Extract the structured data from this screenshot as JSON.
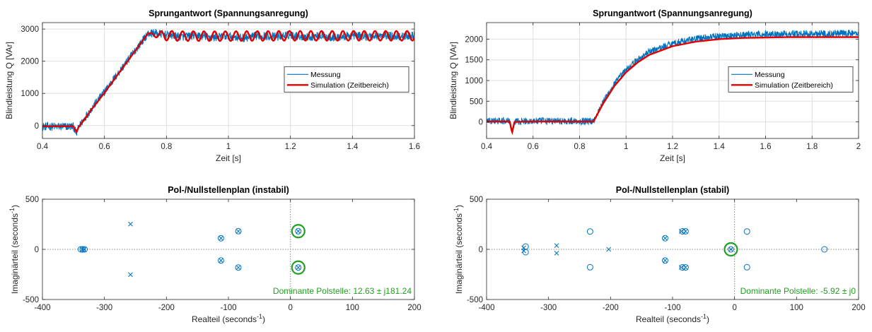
{
  "colors": {
    "measurement": "#0072BD",
    "simulation": "#E00000",
    "highlight": "#20A020",
    "grid": "#DFDFDF",
    "axis": "#262626",
    "zero_line": "#8A8A8A"
  },
  "chart_data": [
    {
      "id": "step_unstable",
      "type": "line",
      "title": "Sprungantwort (Spannungsanregung)",
      "xlabel": "Zeit [s]",
      "ylabel": "Blindleistung Q [VAr]",
      "xlim": [
        0.4,
        1.6
      ],
      "ylim": [
        -400,
        3200
      ],
      "xticks": [
        0.4,
        0.6,
        0.8,
        1.0,
        1.2,
        1.4,
        1.6
      ],
      "xtick_labels": [
        "0.4",
        "0.6",
        "0.8",
        "1",
        "1.2",
        "1.4",
        "1.6"
      ],
      "yticks": [
        0,
        1000,
        2000,
        3000
      ],
      "ytick_labels": [
        "0",
        "1000",
        "2000",
        "3000"
      ],
      "grid": true,
      "legend_position": "right",
      "series": [
        {
          "name": "Messung",
          "color": "measurement",
          "noise": 130,
          "x": [
            0.4,
            0.5,
            0.505,
            0.51,
            0.515,
            0.52,
            0.53,
            0.56,
            0.6,
            0.65,
            0.7,
            0.72,
            0.74,
            0.76,
            0.8,
            0.85,
            0.9,
            0.95,
            1.0,
            1.05,
            1.1,
            1.15,
            1.2,
            1.25,
            1.3,
            1.35,
            1.4,
            1.45,
            1.5,
            1.55,
            1.6
          ],
          "y": [
            -30,
            -30,
            -150,
            -250,
            -100,
            0,
            150,
            550,
            1050,
            1700,
            2350,
            2600,
            2850,
            2880,
            2820,
            2760,
            2800,
            2740,
            2780,
            2720,
            2800,
            2760,
            2820,
            2750,
            2790,
            2730,
            2800,
            2760,
            2800,
            2770,
            2790
          ]
        },
        {
          "name": "Simulation (Zeitbereich)",
          "color": "simulation",
          "oscillation": {
            "amplitude": 150,
            "frequency_hz": 29,
            "start": 0.74
          },
          "x": [
            0.4,
            0.5,
            0.505,
            0.51,
            0.515,
            0.52,
            0.53,
            0.56,
            0.6,
            0.65,
            0.7,
            0.74,
            0.78,
            0.85,
            1.0,
            1.2,
            1.4,
            1.6
          ],
          "y": [
            -20,
            -20,
            -120,
            -210,
            -80,
            0,
            120,
            520,
            1020,
            1680,
            2330,
            2860,
            2800,
            2780,
            2780,
            2790,
            2790,
            2790
          ]
        }
      ]
    },
    {
      "id": "step_stable",
      "type": "line",
      "title": "Sprungantwort (Spannungsanregung)",
      "xlabel": "Zeit [s]",
      "ylabel": "Blindleistung Q [VAr]",
      "xlim": [
        0.4,
        2.0
      ],
      "ylim": [
        -400,
        2400
      ],
      "xticks": [
        0.4,
        0.6,
        0.8,
        1.0,
        1.2,
        1.4,
        1.6,
        1.8,
        2.0
      ],
      "xtick_labels": [
        "0.4",
        "0.6",
        "0.8",
        "1",
        "1.2",
        "1.4",
        "1.6",
        "1.8",
        "2"
      ],
      "yticks": [
        0,
        500,
        1000,
        1500,
        2000
      ],
      "ytick_labels": [
        "0",
        "500",
        "1000",
        "1500",
        "2000"
      ],
      "grid": true,
      "legend_position": "right",
      "series": [
        {
          "name": "Messung",
          "color": "measurement",
          "noise": 85,
          "x": [
            0.4,
            0.5,
            0.505,
            0.51,
            0.52,
            0.6,
            0.8,
            0.86,
            0.88,
            0.9,
            0.95,
            1.0,
            1.05,
            1.1,
            1.2,
            1.3,
            1.4,
            1.5,
            1.6,
            1.7,
            1.8,
            1.9,
            2.0
          ],
          "y": [
            20,
            20,
            -150,
            -280,
            10,
            20,
            20,
            20,
            250,
            470,
            920,
            1260,
            1500,
            1690,
            1900,
            2010,
            2070,
            2100,
            2120,
            2130,
            2130,
            2140,
            2140
          ]
        },
        {
          "name": "Simulation (Zeitbereich)",
          "color": "simulation",
          "x": [
            0.4,
            0.5,
            0.505,
            0.51,
            0.52,
            0.6,
            0.8,
            0.86,
            0.88,
            0.9,
            0.95,
            1.0,
            1.05,
            1.1,
            1.2,
            1.3,
            1.4,
            1.5,
            1.6,
            1.7,
            1.8,
            1.9,
            2.0
          ],
          "y": [
            10,
            10,
            -140,
            -250,
            0,
            10,
            10,
            10,
            220,
            430,
            870,
            1200,
            1440,
            1620,
            1830,
            1940,
            2000,
            2030,
            2040,
            2050,
            2050,
            2050,
            2050
          ]
        }
      ]
    },
    {
      "id": "pz_unstable",
      "type": "scatter",
      "title": "Pol-/Nullstellenplan (instabil)",
      "xlabel": "Realteil (seconds",
      "ylabel": "Imaginärteil (seconds",
      "unit_exponent": "-1",
      "xlim": [
        -400,
        200
      ],
      "ylim": [
        -500,
        500
      ],
      "xticks": [
        -400,
        -300,
        -200,
        -100,
        0,
        100,
        200
      ],
      "xtick_labels": [
        "-400",
        "-300",
        "-200",
        "-100",
        "0",
        "100",
        "200"
      ],
      "yticks": [
        -500,
        0,
        500
      ],
      "ytick_labels": [
        "-500",
        "0",
        "500"
      ],
      "grid": false,
      "poles": [
        [
          -258,
          252
        ],
        [
          -258,
          -252
        ],
        [
          -84,
          181
        ],
        [
          -84,
          -181
        ],
        [
          -112,
          111
        ],
        [
          -112,
          -111
        ],
        [
          -336,
          0
        ],
        [
          -333,
          0
        ],
        [
          12.63,
          181.24
        ],
        [
          12.63,
          -181.24
        ]
      ],
      "zeros": [
        [
          -84,
          181
        ],
        [
          -84,
          -181
        ],
        [
          -112,
          111
        ],
        [
          -112,
          -111
        ],
        [
          -338,
          0
        ],
        [
          -335,
          0
        ],
        [
          -332,
          0
        ],
        [
          12.63,
          181.24
        ],
        [
          12.63,
          -181.24
        ]
      ],
      "highlighted": [
        [
          12.63,
          181.24
        ],
        [
          12.63,
          -181.24
        ]
      ],
      "annotation": {
        "prefix": "Dominante Polstelle: ",
        "real": "12.63",
        "sign": "±",
        "imag": "j181.24"
      }
    },
    {
      "id": "pz_stable",
      "type": "scatter",
      "title": "Pol-/Nullstellenplan (stabil)",
      "xlabel": "Realteil (seconds",
      "ylabel": "Imaginärteil (seconds",
      "unit_exponent": "-1",
      "xlim": [
        -400,
        200
      ],
      "ylim": [
        -500,
        500
      ],
      "xticks": [
        -400,
        -300,
        -200,
        -100,
        0,
        100,
        200
      ],
      "xtick_labels": [
        "-400",
        "-300",
        "-200",
        "-100",
        "0",
        "100",
        "200"
      ],
      "yticks": [
        -500,
        0,
        500
      ],
      "ytick_labels": [
        "-500",
        "0",
        "500"
      ],
      "grid": false,
      "poles": [
        [
          -340,
          15
        ],
        [
          -340,
          -15
        ],
        [
          -287,
          38
        ],
        [
          -287,
          -38
        ],
        [
          -203,
          0
        ],
        [
          -112,
          111
        ],
        [
          -112,
          -111
        ],
        [
          -86,
          180
        ],
        [
          -86,
          -180
        ],
        [
          -79,
          180
        ],
        [
          -79,
          -180
        ],
        [
          -5.92,
          0
        ]
      ],
      "zeros": [
        [
          -337,
          28
        ],
        [
          -337,
          -28
        ],
        [
          -233,
          178
        ],
        [
          -233,
          -178
        ],
        [
          -112,
          111
        ],
        [
          -112,
          -111
        ],
        [
          -84,
          180
        ],
        [
          -84,
          -180
        ],
        [
          -79,
          180
        ],
        [
          -79,
          -180
        ],
        [
          20,
          178
        ],
        [
          20,
          -178
        ],
        [
          145,
          0
        ],
        [
          -5.92,
          0
        ]
      ],
      "highlighted": [
        [
          -5.92,
          0
        ]
      ],
      "annotation": {
        "prefix": "Dominante Polstelle: ",
        "real": "-5.92",
        "sign": "±",
        "imag": "j0"
      }
    }
  ]
}
